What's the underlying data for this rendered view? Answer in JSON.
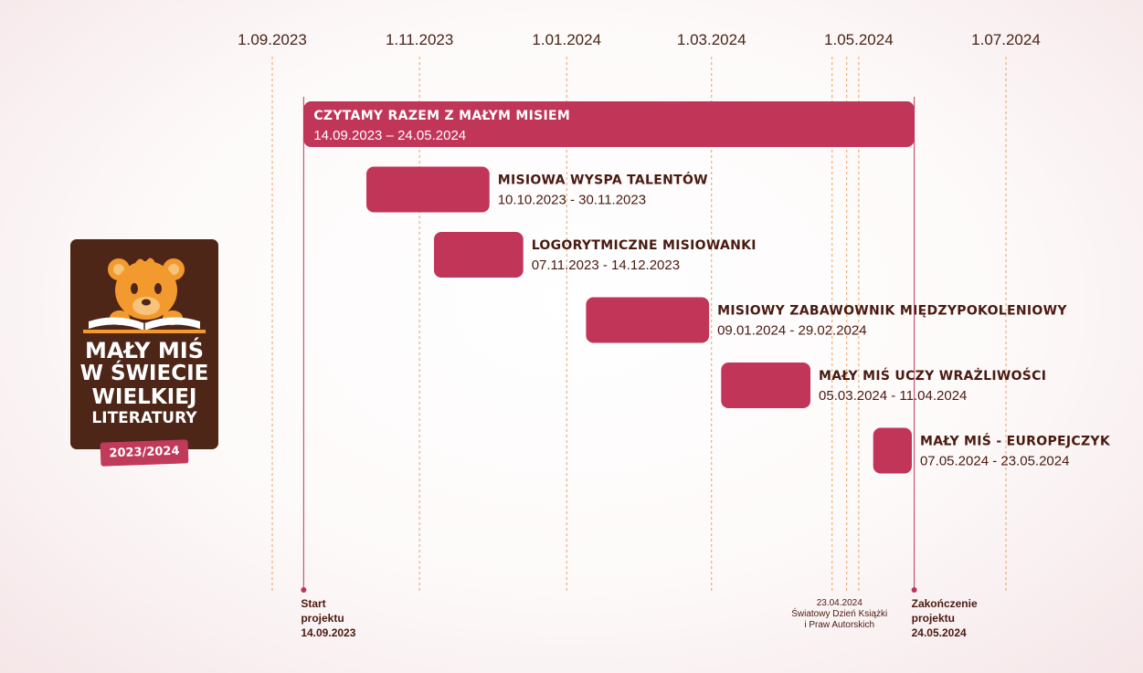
{
  "chart_data": {
    "type": "gantt",
    "x_ticks": [
      "1.09.2023",
      "1.11.2023",
      "1.01.2024",
      "1.03.2024",
      "1.05.2024",
      "1.07.2024"
    ],
    "tasks": [
      {
        "name": "CZYTAMY RAZEM Z MAŁYM MISIEM",
        "start": "2023-09-14",
        "end": "2024-05-24",
        "label": "14.09.2023 – 24.05.2024"
      },
      {
        "name": "MISIOWA WYSPA TALENTÓW",
        "start": "2023-10-10",
        "end": "2023-11-30",
        "label": "10.10.2023 - 30.11.2023"
      },
      {
        "name": "LOGORYTMICZNE MISIOWANKI",
        "start": "2023-11-07",
        "end": "2023-12-14",
        "label": "07.11.2023 - 14.12.2023"
      },
      {
        "name": "MISIOWY ZABAWOWNIK MIĘDZYPOKOLENIOWY",
        "start": "2024-01-09",
        "end": "2024-02-29",
        "label": "09.01.2024 - 29.02.2024"
      },
      {
        "name": "MAŁY MIŚ UCZY WRAŻLIWOŚCI",
        "start": "2024-03-05",
        "end": "2024-04-11",
        "label": "05.03.2024 - 11.04.2024"
      },
      {
        "name": "MAŁY MIŚ - EUROPEJCZYK",
        "start": "2024-05-07",
        "end": "2024-05-23",
        "label": "07.05.2024 - 23.05.2024"
      }
    ],
    "markers": [
      {
        "date": "2023-09-14",
        "lines": [
          "Start",
          "projektu",
          "14.09.2023"
        ]
      },
      {
        "date": "2024-05-24",
        "lines": [
          "Zakończenie",
          "projektu",
          "24.05.2024"
        ]
      }
    ],
    "events": [
      {
        "date": "2024-04-23",
        "lines": [
          "23.04.2024",
          "Światowy Dzień Książki",
          "i Praw Autorskich"
        ]
      }
    ],
    "grid": true
  },
  "colors": {
    "bar": "#c13558",
    "grid": "#eaa060",
    "marker": "#b8385c",
    "text": "#4a1a10",
    "logo_bg": "#4d2617",
    "logo_bear": "#f39a2e",
    "logo_year": "#c03a5a"
  },
  "logo": {
    "line1": "MAŁY MIŚ",
    "line2": "W ŚWIECIE",
    "line3": "WIELKIEJ",
    "line4": "LITERATURY",
    "year": "2023/2024",
    "icon": "bear-reading-book-icon"
  }
}
